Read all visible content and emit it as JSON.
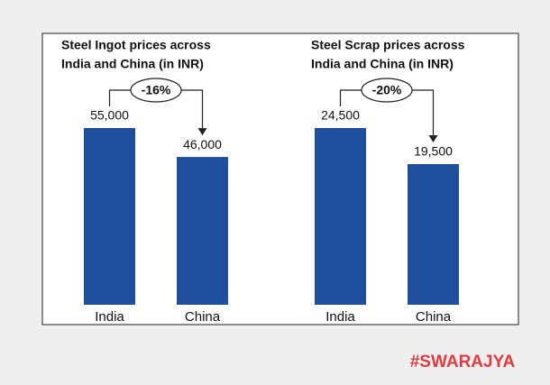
{
  "chart_data": [
    {
      "type": "bar",
      "title": [
        "Steel Ingot prices across",
        "India and China (in INR)"
      ],
      "categories": [
        "India",
        "China"
      ],
      "values": [
        55000,
        46000
      ],
      "value_labels": [
        "55,000",
        "46,000"
      ],
      "annotation": "-16%",
      "color": "#1f4e9c"
    },
    {
      "type": "bar",
      "title": [
        "Steel Scrap prices across",
        "India and China (in INR)"
      ],
      "categories": [
        "India",
        "China"
      ],
      "values": [
        24500,
        19500
      ],
      "value_labels": [
        "24,500",
        "19,500"
      ],
      "annotation": "-20%",
      "color": "#1f4e9c"
    }
  ],
  "watermark": "#SWARAJYA"
}
